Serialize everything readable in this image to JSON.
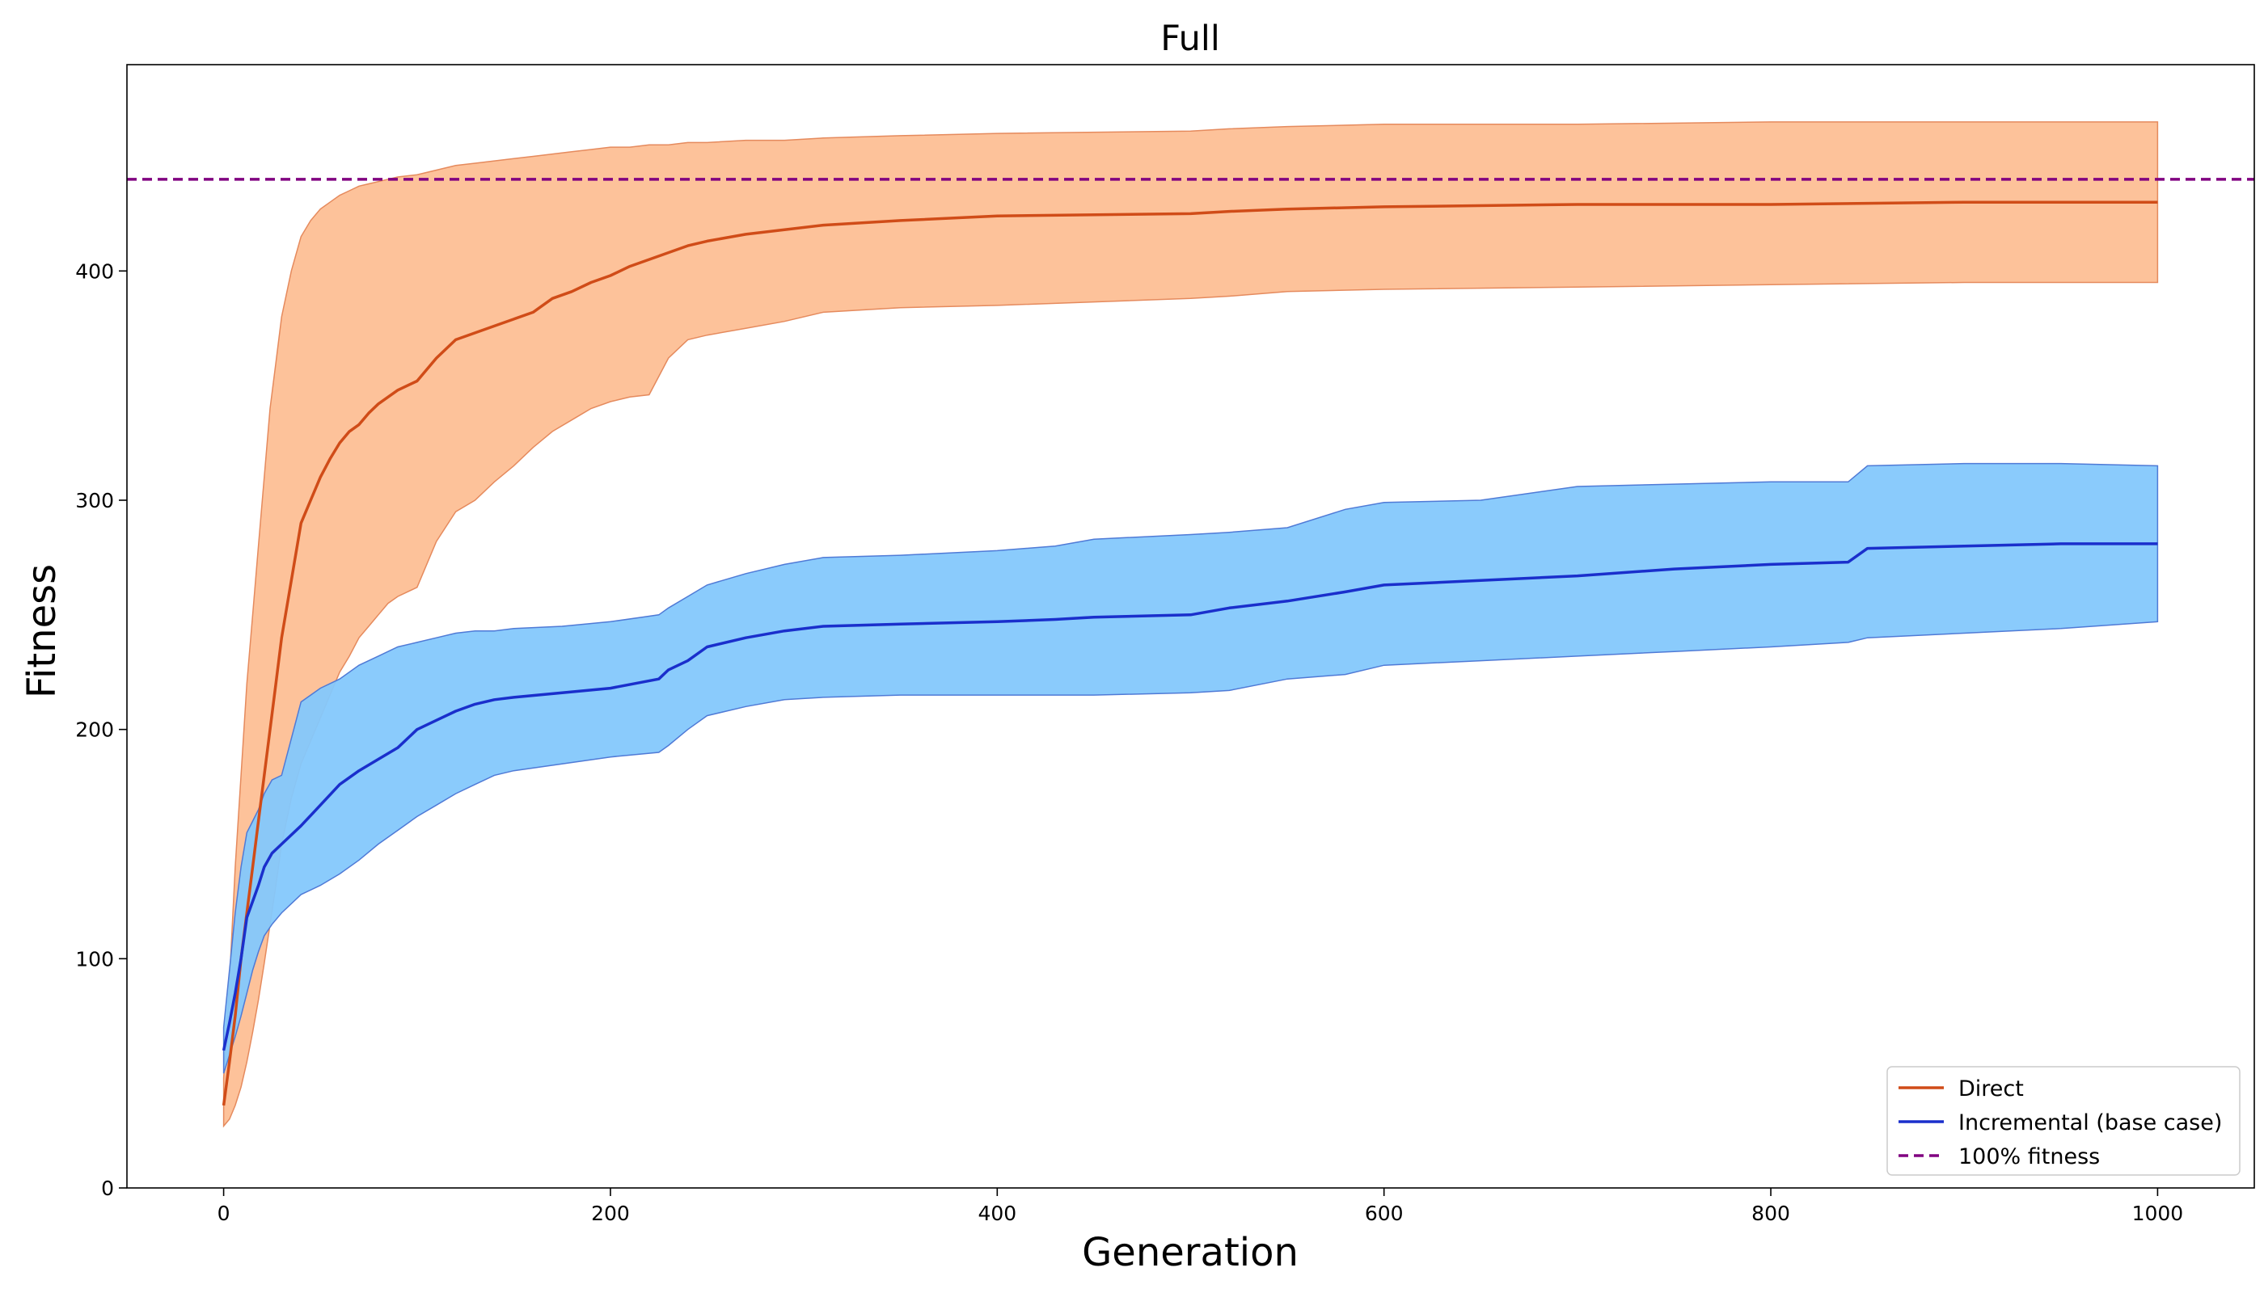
{
  "chart_data": {
    "type": "line",
    "title": "Full",
    "xlabel": "Generation",
    "ylabel": "Fitness",
    "xlim": [
      -50,
      1050
    ],
    "ylim": [
      0,
      490
    ],
    "xticks": [
      0,
      200,
      400,
      600,
      800,
      1000
    ],
    "yticks": [
      0,
      100,
      200,
      300,
      400
    ],
    "legend_position": "lower-right",
    "reference_line": {
      "name": "100% fitness",
      "y": 440,
      "color": "#800080",
      "style": "dashed"
    },
    "series": [
      {
        "name": "Direct",
        "color": "#d04c18",
        "band_color": "#fdbb8f",
        "band_edge": "#e58a5d",
        "x": [
          0,
          3,
          6,
          9,
          12,
          15,
          18,
          21,
          24,
          27,
          30,
          35,
          40,
          45,
          50,
          55,
          60,
          65,
          70,
          75,
          80,
          85,
          90,
          100,
          110,
          120,
          130,
          140,
          150,
          160,
          170,
          180,
          190,
          200,
          210,
          220,
          230,
          240,
          250,
          270,
          290,
          310,
          350,
          400,
          500,
          520,
          550,
          600,
          700,
          800,
          900,
          1000
        ],
        "mean": [
          36,
          55,
          75,
          100,
          120,
          140,
          160,
          180,
          200,
          220,
          240,
          265,
          290,
          300,
          310,
          318,
          325,
          330,
          333,
          338,
          342,
          345,
          348,
          352,
          362,
          370,
          373,
          376,
          379,
          382,
          388,
          391,
          395,
          398,
          402,
          405,
          408,
          411,
          413,
          416,
          418,
          420,
          422,
          424,
          425,
          426,
          427,
          428,
          429,
          429,
          430,
          430
        ],
        "upper": [
          48,
          90,
          140,
          180,
          220,
          250,
          280,
          310,
          340,
          360,
          380,
          400,
          415,
          422,
          427,
          430,
          433,
          435,
          437,
          438,
          439,
          440,
          441,
          442,
          444,
          446,
          447,
          448,
          449,
          450,
          451,
          452,
          453,
          454,
          454,
          455,
          455,
          456,
          456,
          457,
          457,
          458,
          459,
          460,
          461,
          462,
          463,
          464,
          464,
          465,
          465,
          465
        ],
        "lower": [
          27,
          30,
          36,
          44,
          55,
          68,
          82,
          98,
          115,
          132,
          150,
          170,
          185,
          195,
          205,
          215,
          225,
          232,
          240,
          245,
          250,
          255,
          258,
          262,
          282,
          295,
          300,
          308,
          315,
          323,
          330,
          335,
          340,
          343,
          345,
          346,
          362,
          370,
          372,
          375,
          378,
          382,
          384,
          385,
          388,
          389,
          391,
          392,
          393,
          394,
          395,
          395
        ]
      },
      {
        "name": "Incremental (base case)",
        "color": "#1a2fcc",
        "band_color": "#84c8fc",
        "band_edge": "#4f7ad6",
        "x": [
          0,
          3,
          6,
          9,
          12,
          15,
          18,
          21,
          25,
          30,
          40,
          50,
          60,
          70,
          80,
          90,
          100,
          110,
          120,
          130,
          140,
          150,
          175,
          200,
          225,
          230,
          240,
          250,
          270,
          290,
          310,
          350,
          400,
          430,
          450,
          500,
          520,
          550,
          580,
          600,
          650,
          700,
          750,
          800,
          840,
          850,
          900,
          950,
          1000
        ],
        "mean": [
          60,
          72,
          85,
          100,
          118,
          125,
          132,
          140,
          146,
          150,
          158,
          167,
          176,
          182,
          187,
          192,
          200,
          204,
          208,
          211,
          213,
          214,
          216,
          218,
          222,
          226,
          230,
          236,
          240,
          243,
          245,
          246,
          247,
          248,
          249,
          250,
          253,
          256,
          260,
          263,
          265,
          267,
          270,
          272,
          273,
          279,
          280,
          281,
          281
        ],
        "upper": [
          70,
          95,
          120,
          140,
          155,
          160,
          165,
          172,
          178,
          180,
          212,
          218,
          222,
          228,
          232,
          236,
          238,
          240,
          242,
          243,
          243,
          244,
          245,
          247,
          250,
          253,
          258,
          263,
          268,
          272,
          275,
          276,
          278,
          280,
          283,
          285,
          286,
          288,
          296,
          299,
          300,
          306,
          307,
          308,
          308,
          315,
          316,
          316,
          315
        ],
        "lower": [
          50,
          58,
          66,
          75,
          85,
          95,
          103,
          110,
          115,
          120,
          128,
          132,
          137,
          143,
          150,
          156,
          162,
          167,
          172,
          176,
          180,
          182,
          185,
          188,
          190,
          193,
          200,
          206,
          210,
          213,
          214,
          215,
          215,
          215,
          215,
          216,
          217,
          222,
          224,
          228,
          230,
          232,
          234,
          236,
          238,
          240,
          242,
          244,
          247
        ]
      }
    ]
  }
}
